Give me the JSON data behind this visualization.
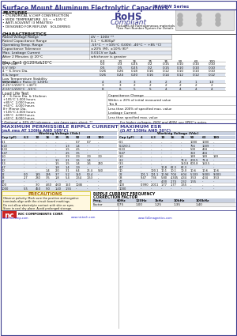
{
  "title_main": "Surface Mount Aluminum Electrolytic Capacitors",
  "title_series": "NACEW Series",
  "rohs_line1": "RoHS",
  "rohs_line2": "Compliant",
  "rohs_sub": "Includes all homogeneous materials",
  "part_num_note": "*See Part Number System for Details",
  "features_title": "FEATURES",
  "features": [
    "• CYLINDRICAL V-CHIP CONSTRUCTION",
    "• WIDE TEMPERATURE -55 ~ +105°C",
    "• ANTI-SOLVENT (3 MINUTES)",
    "• DESIGNED FOR REFLOW   SOLDERING"
  ],
  "char_title": "CHARACTERISTICS",
  "char_rows": [
    [
      "Rated Voltage Range",
      "4V ~ 100V **"
    ],
    [
      "Rated Capacitance Range",
      "0.1 ~ 6,800μF"
    ],
    [
      "Operating Temp. Range",
      "-55°C ~ +105°C (100V: -40°C ~ +85 °C)"
    ],
    [
      "Capacitance Tolerance",
      "±20% (M), ±10% (K)*"
    ],
    [
      "Max. Leakage Current",
      "0.01CV or 3μA,"
    ],
    [
      "After 2 Minutes @ 20°C",
      "whichever is greater"
    ]
  ],
  "tan_title": "Max. Tanδ @120Hz&20°C",
  "tan_header": [
    "",
    "6.3",
    "10",
    "16",
    "25",
    "35",
    "50",
    "63",
    "100"
  ],
  "tan_rows": [
    [
      "W*V (V4)",
      "0.3",
      "0.3",
      "0.25",
      "0.2",
      "0.15",
      "0.10",
      "0.10",
      "0.10"
    ],
    [
      "6 V (V6)",
      "0.5",
      "0.5",
      "0.25",
      "0.2",
      "0.15",
      "0.10",
      "0.10",
      "0.10"
    ],
    [
      "4 ~ 6.3mm Dia.",
      "0.26",
      "0.26",
      "0.18",
      "0.16",
      "0.12",
      "0.10",
      "0.10",
      "0.10"
    ],
    [
      "8 & larger",
      "0.26",
      "0.24",
      "0.20",
      "0.16",
      "0.14",
      "0.12",
      "0.12",
      "0.12"
    ]
  ],
  "low_temp_title": "Low Temperature Stability",
  "imp_title": "Impedance Ratio @ 120Hz",
  "low_rows": [
    [
      "W*V (V4)",
      "4",
      "3",
      "3",
      "3",
      "2",
      "2",
      "1",
      "1.0"
    ],
    [
      "Z-25°C/Z20°C +40°C",
      "3",
      "3",
      "2",
      "2",
      "2",
      "2",
      "2",
      "2"
    ],
    [
      "Z-55°C/Z20°C  -55°C",
      "8",
      "6",
      "5",
      "5",
      "4",
      "4",
      "4",
      "4"
    ]
  ],
  "load_life_title": "Load Life Test",
  "load_rows_a": [
    "4 ~ 6.3mm Dia. & 10x4mm",
    "+105°C 1,000 hours",
    "+85°C  2,000 hours",
    "+60°C  4,000 hours"
  ],
  "load_rows_b": [
    "8+ Minnie Dia.",
    "+105°C 2,000 hours",
    "+85°C  4,000 hours",
    "+60°C  8,000 hours"
  ],
  "cap_change": "Capacitance Change",
  "cap_change_val": "Within ± 20% of initial measured value",
  "tan_b": "Tan δ",
  "tan_b_val": "Less than 200% of specified max. value",
  "leakage": "Leakage Current",
  "leakage_val": "Less than specified max. value",
  "note_optional": "* Optional ± 10% (K) tolerance - see Laser spec sheet. **",
  "note_voltage": "For higher voltages, 200V and 400V, see SPEC°s notes.",
  "ripple_title": "MAXIMUM PERMISSIBLE RIPPLE CURRENT",
  "ripple_sub": "(mA rms AT 120Hz AND 105°C)",
  "esr_title": "MAXIMUM ESR",
  "esr_sub": "(Ω AT 120Hz AND 20°C)",
  "working_v_label": "Working Voltage (Vdc)",
  "ripple_header": [
    "Cap (μF)",
    "6.3",
    "10",
    "16",
    "25",
    "35",
    "50",
    "63",
    "100"
  ],
  "ripple_rows": [
    [
      "0.1",
      "-",
      "-",
      "-",
      "-",
      "-",
      "0.7",
      "0.7",
      "-"
    ],
    [
      "0.22",
      "-",
      "-",
      "-",
      "-",
      "1.3",
      "1.4",
      "-",
      "-"
    ],
    [
      "0.33",
      "-",
      "-",
      "-",
      "-",
      "1.5",
      "2.5",
      "-",
      "-"
    ],
    [
      "0.47",
      "-",
      "-",
      "-",
      "-",
      "2.5",
      "3.5",
      "-",
      "-"
    ],
    [
      "1.0",
      "-",
      "-",
      "-",
      "-",
      "3.9",
      "3.9",
      "3.9",
      "3.9"
    ],
    [
      "2.2",
      "-",
      "-",
      "-",
      "1.1",
      "2.1",
      "1.5",
      "1.4",
      "-"
    ],
    [
      "3.3",
      "-",
      "-",
      "-",
      "1.5",
      "1.5",
      "1.4",
      "1.6",
      "240"
    ],
    [
      "4.7",
      "-",
      "-",
      "-",
      "1.8",
      "1.4",
      "1.9",
      "-",
      "-"
    ],
    [
      "10",
      "-",
      "-",
      "1.4",
      "2.0",
      "3.1",
      "6.4",
      "26.4",
      "530"
    ],
    [
      "22",
      "0.0",
      "185",
      "295",
      "3.7",
      "5.2",
      "150",
      "50.4",
      "-"
    ],
    [
      "33",
      "2.7",
      "280",
      "3.5",
      "1.8",
      "5.4",
      "1.54",
      "1.53",
      "-"
    ],
    [
      "47",
      "-",
      "-",
      "-",
      "-",
      "-",
      "-",
      "-",
      "-"
    ],
    [
      "100",
      "-",
      "3.0",
      "4.60",
      "4.60",
      "150",
      "1046",
      "-",
      "-"
    ],
    [
      "1000",
      "5.5",
      "450",
      "9.0",
      "1.40",
      "1.55",
      "-",
      "-",
      "-"
    ]
  ],
  "esr_header": [
    "Cap (μF)",
    "4",
    "6.3",
    "10",
    "16",
    "25",
    "50",
    "63",
    "100"
  ],
  "esr_rows": [
    [
      "0.1",
      "-",
      "-",
      "-",
      "-",
      "-",
      "1000",
      "1000",
      "-"
    ],
    [
      "0.22/0.1",
      "-",
      "-",
      "-",
      "-",
      "-",
      "756",
      "1009",
      "-"
    ],
    [
      "0.33",
      "-",
      "-",
      "-",
      "-",
      "-",
      "500",
      "404",
      "-"
    ],
    [
      "0.47",
      "-",
      "-",
      "-",
      "-",
      "-",
      "350",
      "404",
      "-"
    ],
    [
      "1.0",
      "-",
      "-",
      "-",
      "-",
      "-",
      "199",
      "199",
      "199"
    ],
    [
      "2.2",
      "-",
      "-",
      "-",
      "-",
      "73.4",
      "200.5",
      "73.4",
      "-"
    ],
    [
      "3.3",
      "-",
      "-",
      "-",
      "-",
      "150.8",
      "600.8",
      "150.5",
      "-"
    ],
    [
      "4.7",
      "-",
      "-",
      "10.8",
      "62.3",
      "62.3",
      "-",
      "-",
      "-"
    ],
    [
      "10",
      "-",
      "100.1",
      "10.1",
      "10.1",
      "10.0",
      "10.6",
      "10.6",
      "10.6"
    ],
    [
      "22",
      "101.1",
      "101.1",
      "10.94",
      "7.04",
      "6.04",
      "5.103",
      "9.003",
      "9.003"
    ],
    [
      "33",
      "9.47",
      "7.36",
      "5.80",
      "4.345",
      "4.34",
      "3.53",
      "4.34",
      "3.53"
    ],
    [
      "47",
      "-",
      "-",
      "4.00",
      "2.74",
      "2.32",
      "1.55",
      "-",
      "-"
    ],
    [
      "100",
      "0.990",
      "2.011",
      "1.77",
      "1.77",
      "1.55",
      "-",
      "-",
      "-"
    ],
    [
      "1000",
      "-",
      "-",
      "-",
      "-",
      "-",
      "-",
      "-",
      "-"
    ]
  ],
  "precautions_title": "PRECAUTIONS",
  "precautions_lines": [
    "Observe polarity. Mark sure the positive and negative",
    "terminals align with the circuit board markings.",
    "Do not allow electrolyte contact with skin or eyes.",
    "Store in cool dry place. Avoid prolonged storage."
  ],
  "ripple_freq_title": "RIPPLE CURRENT FREQUENCY",
  "ripple_freq_title2": "CORRECTION FACTOR",
  "freq_header": [
    "Freq.",
    "60Hz",
    "120Hz",
    "1kHz",
    "10kHz",
    "100kHz"
  ],
  "freq_row": [
    "Factor",
    "0.75",
    "1.00",
    "1.25",
    "1.35",
    "1.40"
  ],
  "bg_color": "#ffffff",
  "header_color": "#3a3a8c",
  "line_color": "#999999",
  "shaded_row": "#dce3ef",
  "header_row_bg": "#c8d0e0"
}
